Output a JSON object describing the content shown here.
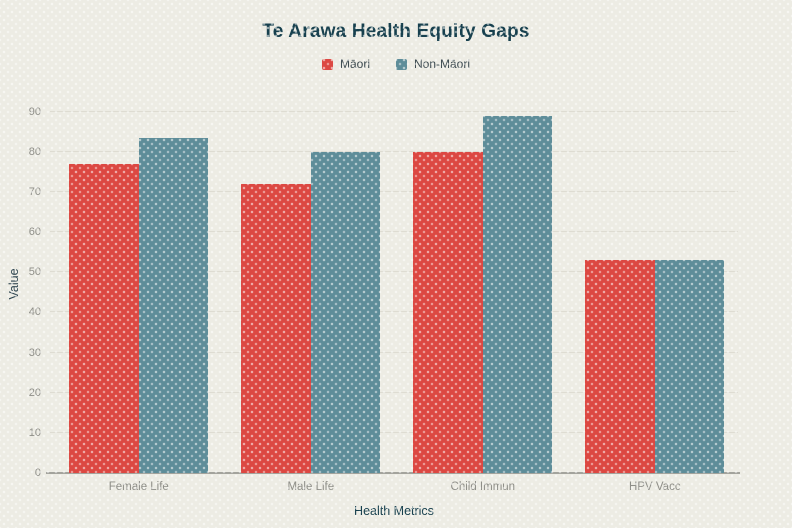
{
  "chart": {
    "title": "Te Arawa Health Equity Gaps",
    "xlabel": "Health Metrics",
    "ylabel": "Value"
  },
  "legend": {
    "items": [
      {
        "label": "Māori",
        "color": "#DC4842"
      },
      {
        "label": "Non-Māori",
        "color": "#5E8D99"
      }
    ]
  },
  "chart_data": {
    "type": "bar",
    "title": "Te Arawa Health Equity Gaps",
    "xlabel": "Health Metrics",
    "ylabel": "Value",
    "categories": [
      "Female Life",
      "Male Life",
      "Child Immun",
      "HPV Vacc"
    ],
    "series": [
      {
        "name": "Māori",
        "color": "#DC4842",
        "values": [
          77,
          72,
          80,
          53
        ]
      },
      {
        "name": "Non-Māori",
        "color": "#5E8D99",
        "values": [
          83.5,
          80,
          89,
          53
        ]
      }
    ],
    "ylim": [
      0,
      90
    ],
    "yticks": [
      0,
      10,
      20,
      30,
      40,
      50,
      60,
      70,
      80,
      90
    ],
    "grid": "horizontal",
    "legend_position": "top"
  },
  "colors": {
    "background": "#EDECE4",
    "maori_bar": "#DC4842",
    "non_maori_bar": "#5E8D99",
    "title_text": "#17404E",
    "axis_title_text": "#17404E",
    "tick_label_text": "#8E8E88",
    "legend_text": "#3C4A50",
    "gridline": "#DEDCD2",
    "axis_line": "#A3A39C"
  }
}
